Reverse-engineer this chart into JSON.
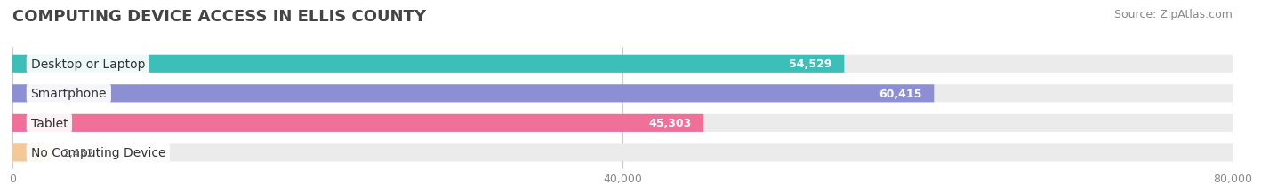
{
  "title": "COMPUTING DEVICE ACCESS IN ELLIS COUNTY",
  "source": "Source: ZipAtlas.com",
  "categories": [
    "Desktop or Laptop",
    "Smartphone",
    "Tablet",
    "No Computing Device"
  ],
  "values": [
    54529,
    60415,
    45303,
    2452
  ],
  "bar_colors": [
    "#3BBFB8",
    "#8C8FD4",
    "#F0709A",
    "#F5C898"
  ],
  "bar_bg_color": "#EBEBEB",
  "xlim": [
    0,
    80000
  ],
  "xtick_labels": [
    "0",
    "40,000",
    "80,000"
  ],
  "background_color": "#FFFFFF",
  "title_fontsize": 13,
  "source_fontsize": 9,
  "cat_label_fontsize": 10,
  "val_label_fontsize": 9,
  "tick_fontsize": 9,
  "inside_label_values": [
    54529,
    60415
  ],
  "outside_label_values": [
    45303,
    2452
  ]
}
